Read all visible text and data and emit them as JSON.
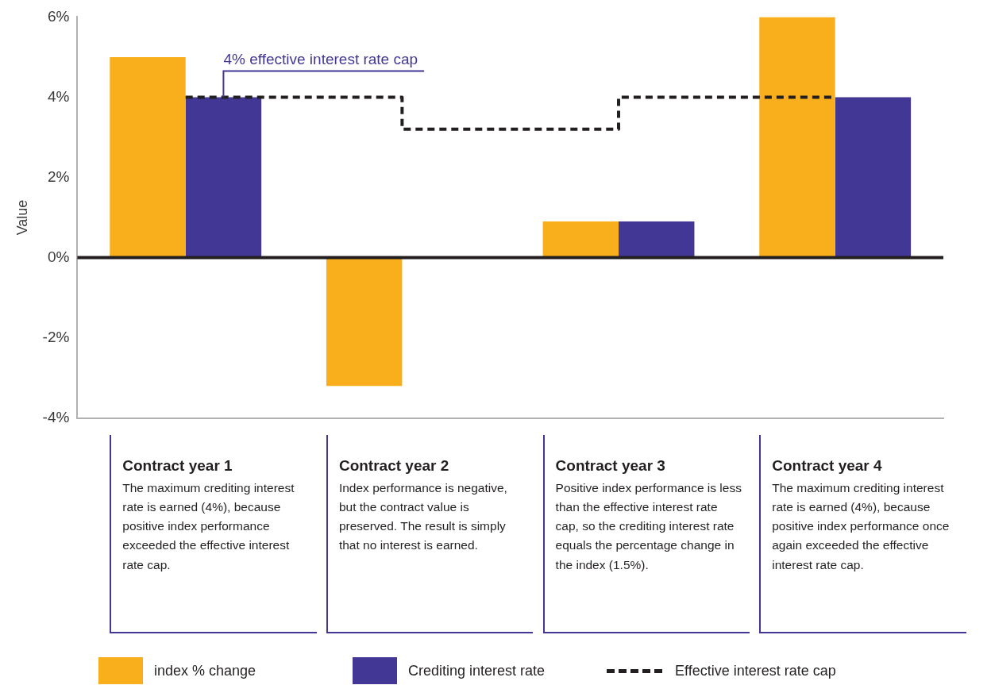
{
  "chart_data": {
    "type": "bar",
    "ylabel": "Value",
    "categories": [
      "Contract year 1",
      "Contract year 2",
      "Contract year 3",
      "Contract year 4"
    ],
    "series": [
      {
        "name": "index % change",
        "color": "#f9ae1b",
        "values": [
          5,
          -3.2,
          0.9,
          6
        ]
      },
      {
        "name": "Crediting interest rate",
        "color": "#433796",
        "values": [
          4,
          0,
          0.9,
          4
        ]
      },
      {
        "name": "Effective interest rate cap",
        "type": "step",
        "line_style": "dashed",
        "color": "#231f20",
        "values": [
          4,
          3.2,
          4,
          4
        ]
      }
    ],
    "ylim": [
      -4,
      6
    ],
    "yticks": [
      {
        "value": -4,
        "label": "-4%"
      },
      {
        "value": -2,
        "label": "-2%"
      },
      {
        "value": 0,
        "label": "0%"
      },
      {
        "value": 2,
        "label": "2%"
      },
      {
        "value": 4,
        "label": "4%"
      },
      {
        "value": 6,
        "label": "6%"
      }
    ],
    "ref_lines": [
      {
        "axis": "y",
        "value": 0,
        "color": "#231f20"
      }
    ],
    "grid": false,
    "legend": "bottom",
    "annotations": [
      {
        "text": "4% effective interest rate cap",
        "y": 4
      },
      "The maximum crediting interest rate is earned (4%), because positive index performance exceeded the effective interest rate cap.",
      "Index performance is negative, but the contract value is preserved. The result is simply that no interest is earned.",
      "Positive index performance is less than the effective interest rate cap, so the crediting interest rate equals the percentage change in the index (1.5%).",
      "The maximum crediting interest rate is earned (4%), because positive index performance once again exceeded the effective interest rate cap."
    ]
  }
}
